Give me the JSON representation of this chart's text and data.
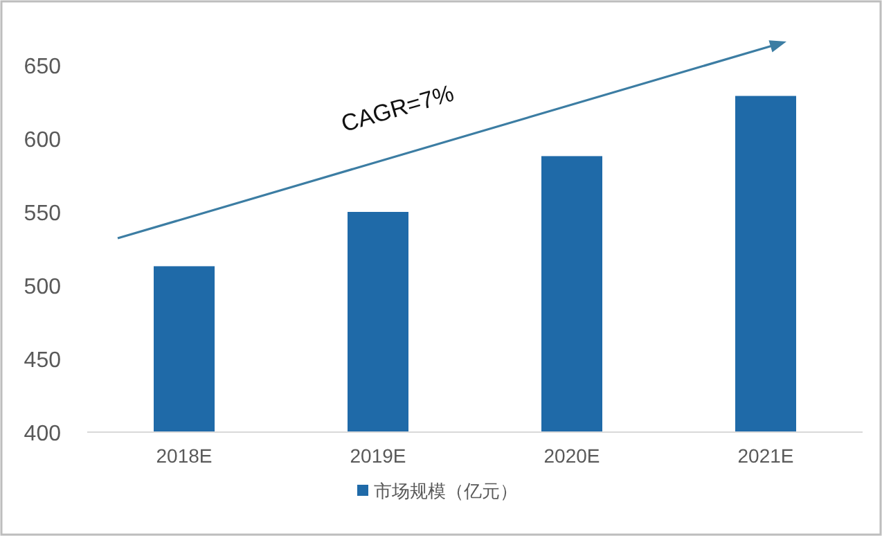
{
  "chart_data": {
    "type": "bar",
    "categories": [
      "2018E",
      "2019E",
      "2020E",
      "2021E"
    ],
    "series": [
      {
        "name": "市场规模（亿元）",
        "color": "#1f6aa8",
        "values": [
          513,
          550,
          588,
          629
        ]
      }
    ],
    "ylim": [
      400,
      650
    ],
    "yticks": [
      400,
      450,
      500,
      550,
      600,
      650
    ],
    "annotations": [
      "CAGR=7%"
    ],
    "legend": "bottom"
  }
}
